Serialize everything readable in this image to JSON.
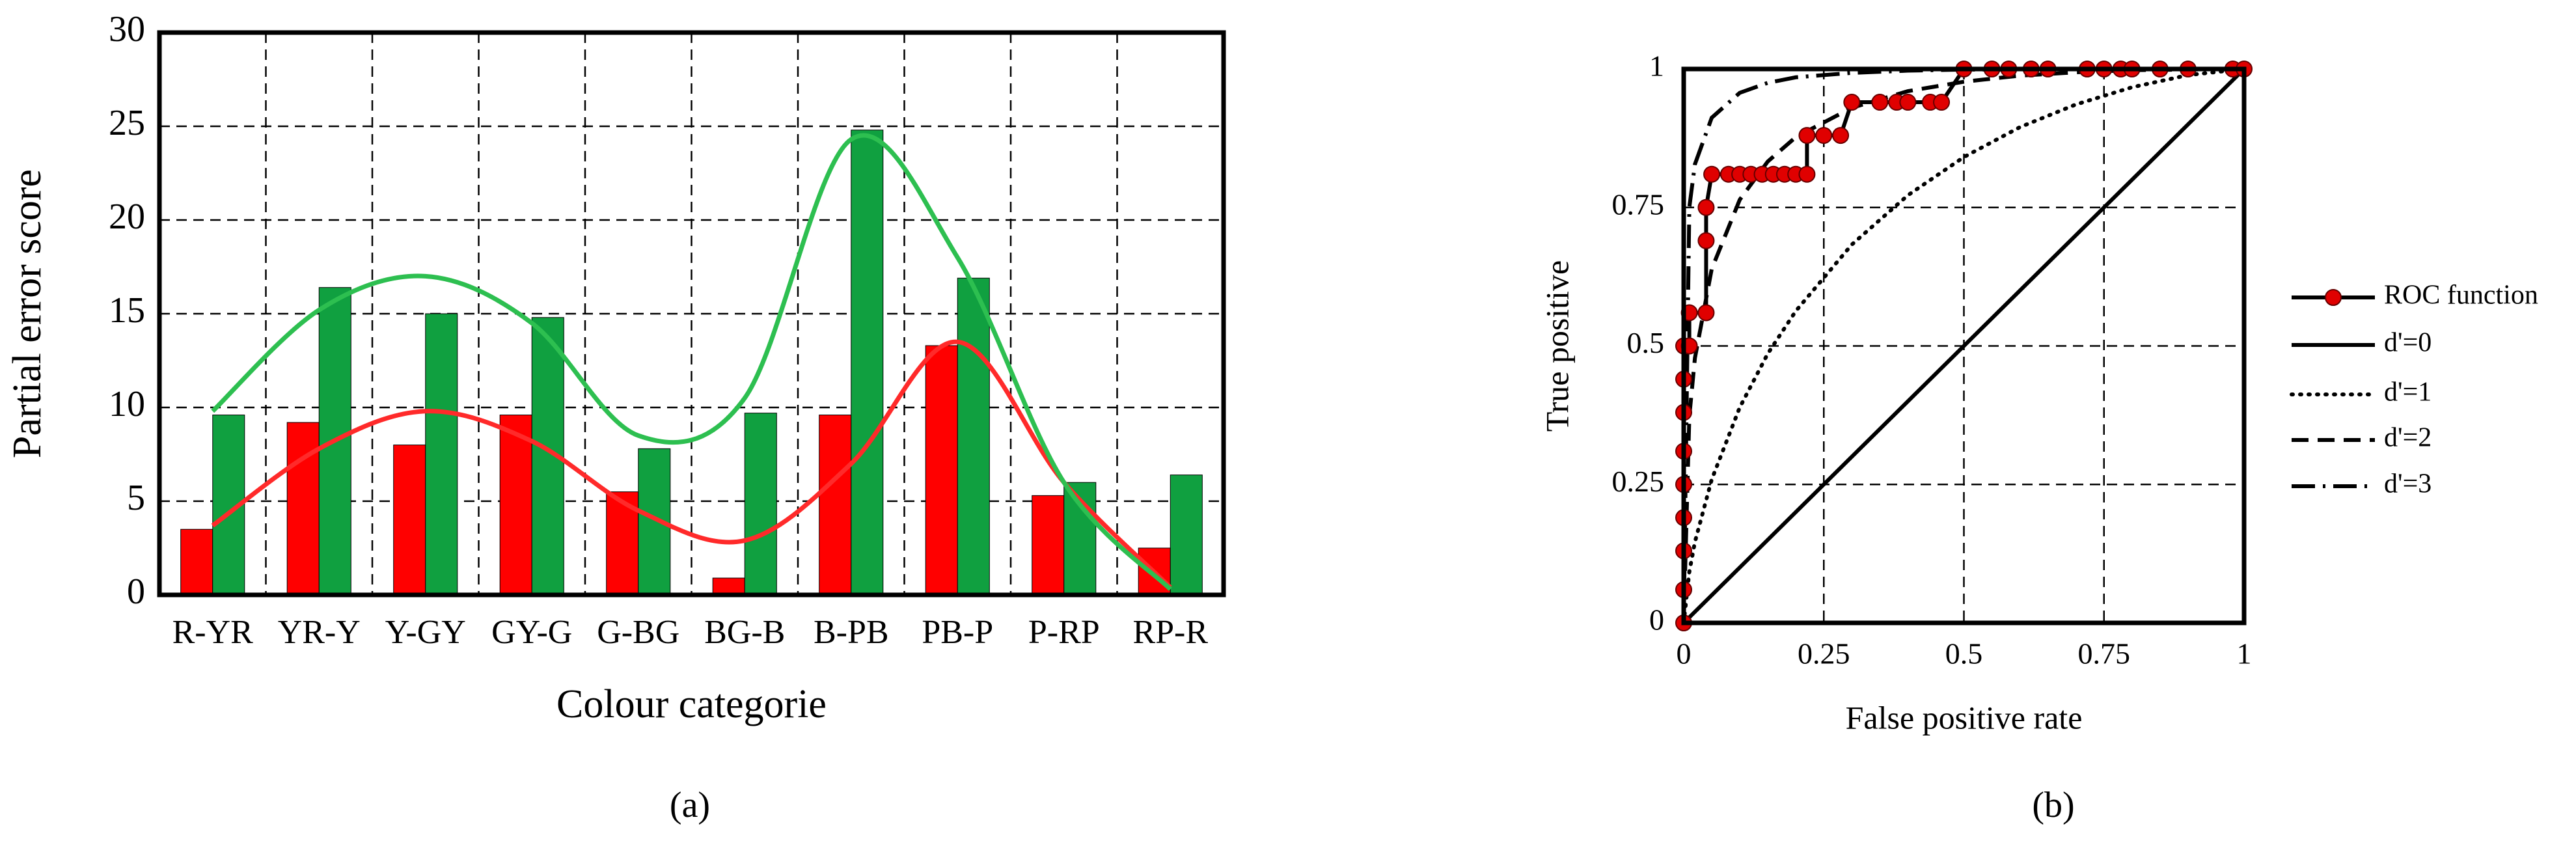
{
  "chart_data": [
    {
      "type": "bar",
      "caption": "(a)",
      "y_label": "Partial error score",
      "x_label": "Colour categorie",
      "categories": [
        "R-YR",
        "YR-Y",
        "Y-GY",
        "GY-G",
        "G-BG",
        "BG-B",
        "B-PB",
        "PB-P",
        "P-RP",
        "RP-R"
      ],
      "series": [
        {
          "color": "#ff0000",
          "values": [
            3.5,
            9.2,
            8,
            9.6,
            5.5,
            0.9,
            9.6,
            13.3,
            5.3,
            2.5
          ],
          "trend": [
            3.7,
            7.8,
            9.8,
            8.2,
            4.5,
            2.9,
            7,
            13.5,
            6,
            0.4
          ],
          "trend_color": "#ff2a2a"
        },
        {
          "color": "#10a040",
          "values": [
            9.6,
            16.4,
            15,
            14.8,
            7.8,
            9.7,
            24.8,
            16.9,
            6,
            6.4
          ],
          "trend": [
            9.8,
            15.2,
            17,
            14.5,
            8.5,
            10.5,
            24.3,
            18,
            6,
            0.3
          ],
          "trend_color": "#2dbf50"
        }
      ],
      "ylim": [
        0,
        30
      ],
      "yticks": [
        0,
        5,
        10,
        15,
        20,
        25,
        30
      ],
      "grid": true
    },
    {
      "type": "line",
      "caption": "(b)",
      "x_label": "False positive rate",
      "y_label": "True positive",
      "xlim": [
        0,
        1
      ],
      "ylim": [
        0,
        1
      ],
      "xticks": [
        0,
        0.25,
        0.5,
        0.75,
        1
      ],
      "yticks": [
        0,
        0.25,
        0.5,
        0.75,
        1
      ],
      "grid": true,
      "series": [
        {
          "name": "ROC function",
          "color": "#000000",
          "marker_color": "#e00000",
          "dash": "solid",
          "markers": true,
          "x": [
            0,
            0,
            0,
            0,
            0,
            0,
            0,
            0,
            0,
            0.01,
            0.01,
            0.04,
            0.04,
            0.04,
            0.05,
            0.08,
            0.1,
            0.12,
            0.14,
            0.16,
            0.18,
            0.2,
            0.22,
            0.22,
            0.25,
            0.28,
            0.3,
            0.35,
            0.38,
            0.4,
            0.44,
            0.46,
            0.5,
            0.55,
            0.58,
            0.62,
            0.65,
            0.72,
            0.75,
            0.78,
            0.8,
            0.85,
            0.9,
            0.98,
            1
          ],
          "y": [
            0,
            0.06,
            0.13,
            0.19,
            0.25,
            0.31,
            0.38,
            0.44,
            0.5,
            0.5,
            0.56,
            0.56,
            0.69,
            0.75,
            0.81,
            0.81,
            0.81,
            0.81,
            0.81,
            0.81,
            0.81,
            0.81,
            0.81,
            0.88,
            0.88,
            0.88,
            0.94,
            0.94,
            0.94,
            0.94,
            0.94,
            0.94,
            1,
            1,
            1,
            1,
            1,
            1,
            1,
            1,
            1,
            1,
            1,
            1,
            1
          ]
        },
        {
          "name": "d'=0",
          "color": "#000000",
          "dash": "solid",
          "x": [
            0,
            1
          ],
          "y": [
            0,
            1
          ]
        },
        {
          "name": "d'=1",
          "color": "#000000",
          "dash": "dotted",
          "x": [
            0,
            0.01,
            0.02,
            0.05,
            0.1,
            0.15,
            0.2,
            0.3,
            0.4,
            0.5,
            0.6,
            0.7,
            0.8,
            0.9,
            1
          ],
          "y": [
            0,
            0.092,
            0.146,
            0.259,
            0.389,
            0.486,
            0.563,
            0.683,
            0.772,
            0.841,
            0.895,
            0.936,
            0.967,
            0.989,
            1
          ]
        },
        {
          "name": "d'=2",
          "color": "#000000",
          "dash": "dashed",
          "x": [
            0,
            0.01,
            0.02,
            0.05,
            0.1,
            0.15,
            0.2,
            0.3,
            0.4,
            0.5,
            0.6,
            0.7,
            0.8,
            0.9,
            1
          ],
          "y": [
            0,
            0.372,
            0.478,
            0.639,
            0.764,
            0.833,
            0.877,
            0.93,
            0.96,
            0.977,
            0.988,
            0.994,
            0.998,
            0.999,
            1
          ]
        },
        {
          "name": "d'=3",
          "color": "#000000",
          "dash": "dashdot",
          "x": [
            0,
            0.01,
            0.02,
            0.05,
            0.1,
            0.15,
            0.2,
            0.3,
            0.4,
            0.5,
            0.6,
            0.7,
            0.8,
            0.9,
            1
          ],
          "y": [
            0,
            0.75,
            0.828,
            0.912,
            0.957,
            0.975,
            0.985,
            0.993,
            0.997,
            0.999,
            0.999,
            1,
            1,
            1,
            1
          ]
        }
      ]
    }
  ]
}
